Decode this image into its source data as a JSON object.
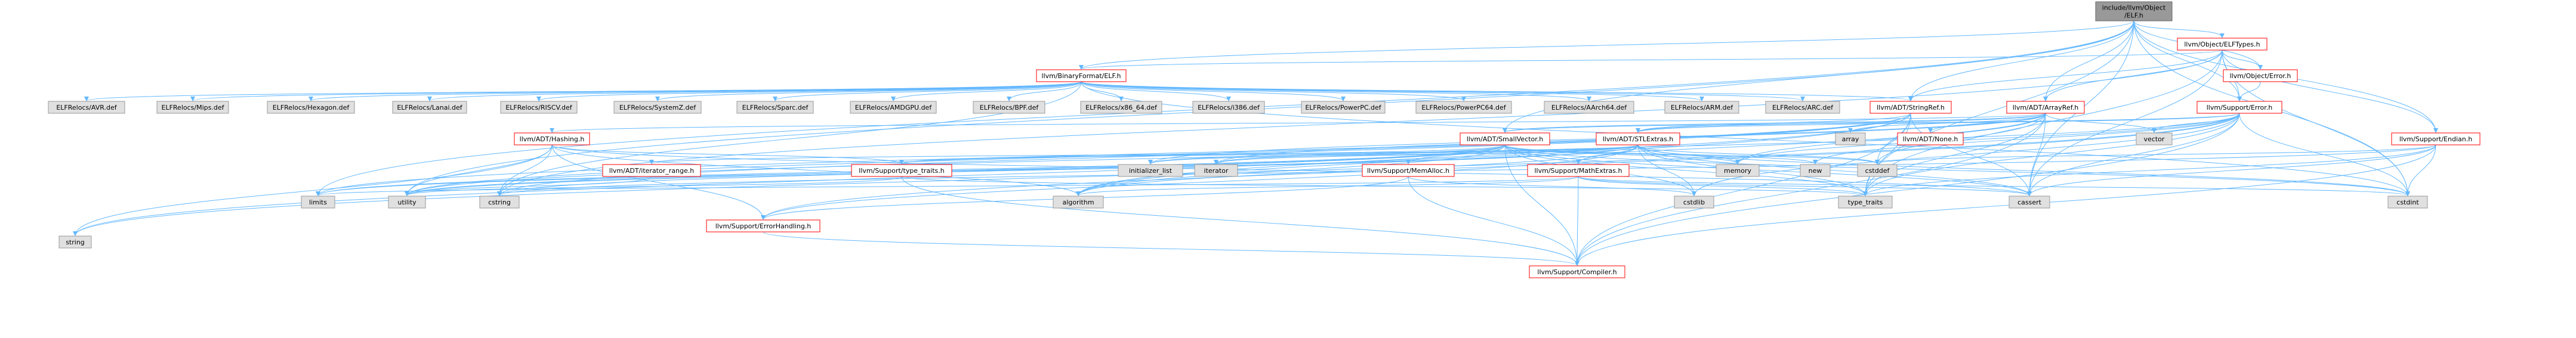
{
  "graph": {
    "type": "include-dependency-graph",
    "colors": {
      "edge": "#63b8ff",
      "root_fill": "#999999",
      "root_stroke": "#666666",
      "internal_fill": "#ffffff",
      "internal_stroke": "#ff0000",
      "external_fill": "#e0e0e0",
      "external_stroke": "#999999",
      "text": "#000000"
    },
    "nodes": [
      {
        "id": "root",
        "kind": "root",
        "lines": [
          "include/llvm/Object",
          "/ELF.h"
        ]
      },
      {
        "id": "objelftypes",
        "kind": "internal",
        "lines": [
          "llvm/Object/ELFTypes.h"
        ]
      },
      {
        "id": "binelf",
        "kind": "internal",
        "lines": [
          "llvm/BinaryFormat/ELF.h"
        ]
      },
      {
        "id": "objerror",
        "kind": "internal",
        "lines": [
          "llvm/Object/Error.h"
        ]
      },
      {
        "id": "r_avr",
        "kind": "external",
        "lines": [
          "ELFRelocs/AVR.def"
        ]
      },
      {
        "id": "r_mips",
        "kind": "external",
        "lines": [
          "ELFRelocs/Mips.def"
        ]
      },
      {
        "id": "r_hexagon",
        "kind": "external",
        "lines": [
          "ELFRelocs/Hexagon.def"
        ]
      },
      {
        "id": "r_lanai",
        "kind": "external",
        "lines": [
          "ELFRelocs/Lanai.def"
        ]
      },
      {
        "id": "r_riscv",
        "kind": "external",
        "lines": [
          "ELFRelocs/RISCV.def"
        ]
      },
      {
        "id": "r_systemz",
        "kind": "external",
        "lines": [
          "ELFRelocs/SystemZ.def"
        ]
      },
      {
        "id": "r_sparc",
        "kind": "external",
        "lines": [
          "ELFRelocs/Sparc.def"
        ]
      },
      {
        "id": "r_amdgpu",
        "kind": "external",
        "lines": [
          "ELFRelocs/AMDGPU.def"
        ]
      },
      {
        "id": "r_bpf",
        "kind": "external",
        "lines": [
          "ELFRelocs/BPF.def"
        ]
      },
      {
        "id": "r_x86_64",
        "kind": "external",
        "lines": [
          "ELFRelocs/x86_64.def"
        ]
      },
      {
        "id": "r_i386",
        "kind": "external",
        "lines": [
          "ELFRelocs/i386.def"
        ]
      },
      {
        "id": "r_ppc",
        "kind": "external",
        "lines": [
          "ELFRelocs/PowerPC.def"
        ]
      },
      {
        "id": "r_ppc64",
        "kind": "external",
        "lines": [
          "ELFRelocs/PowerPC64.def"
        ]
      },
      {
        "id": "r_aarch64",
        "kind": "external",
        "lines": [
          "ELFRelocs/AArch64.def"
        ]
      },
      {
        "id": "r_arm",
        "kind": "external",
        "lines": [
          "ELFRelocs/ARM.def"
        ]
      },
      {
        "id": "r_arc",
        "kind": "external",
        "lines": [
          "ELFRelocs/ARC.def"
        ]
      },
      {
        "id": "stringref",
        "kind": "internal",
        "lines": [
          "llvm/ADT/StringRef.h"
        ]
      },
      {
        "id": "arrayref",
        "kind": "internal",
        "lines": [
          "llvm/ADT/ArrayRef.h"
        ]
      },
      {
        "id": "supperror",
        "kind": "internal",
        "lines": [
          "llvm/Support/Error.h"
        ]
      },
      {
        "id": "hashing",
        "kind": "internal",
        "lines": [
          "llvm/ADT/Hashing.h"
        ]
      },
      {
        "id": "smallvector",
        "kind": "internal",
        "lines": [
          "llvm/ADT/SmallVector.h"
        ]
      },
      {
        "id": "stlextras",
        "kind": "internal",
        "lines": [
          "llvm/ADT/STLExtras.h"
        ]
      },
      {
        "id": "array",
        "kind": "external",
        "lines": [
          "array"
        ]
      },
      {
        "id": "none",
        "kind": "internal",
        "lines": [
          "llvm/ADT/None.h"
        ]
      },
      {
        "id": "vector",
        "kind": "external",
        "lines": [
          "vector"
        ]
      },
      {
        "id": "endian",
        "kind": "internal",
        "lines": [
          "llvm/Support/Endian.h"
        ]
      },
      {
        "id": "iterrange",
        "kind": "internal",
        "lines": [
          "llvm/ADT/iterator_range.h"
        ]
      },
      {
        "id": "typetraits",
        "kind": "internal",
        "lines": [
          "llvm/Support/type_traits.h"
        ]
      },
      {
        "id": "initlist",
        "kind": "external",
        "lines": [
          "initializer_list"
        ]
      },
      {
        "id": "iterator",
        "kind": "external",
        "lines": [
          "iterator"
        ]
      },
      {
        "id": "memalloc",
        "kind": "internal",
        "lines": [
          "llvm/Support/MemAlloc.h"
        ]
      },
      {
        "id": "mathextras",
        "kind": "internal",
        "lines": [
          "llvm/Support/MathExtras.h"
        ]
      },
      {
        "id": "memory",
        "kind": "external",
        "lines": [
          "memory"
        ]
      },
      {
        "id": "new",
        "kind": "external",
        "lines": [
          "new"
        ]
      },
      {
        "id": "cstddef",
        "kind": "external",
        "lines": [
          "cstddef"
        ]
      },
      {
        "id": "limits",
        "kind": "external",
        "lines": [
          "limits"
        ]
      },
      {
        "id": "utility",
        "kind": "external",
        "lines": [
          "utility"
        ]
      },
      {
        "id": "cstring",
        "kind": "external",
        "lines": [
          "cstring"
        ]
      },
      {
        "id": "algorithm",
        "kind": "external",
        "lines": [
          "algorithm"
        ]
      },
      {
        "id": "errhandling",
        "kind": "internal",
        "lines": [
          "llvm/Support/ErrorHandling.h"
        ]
      },
      {
        "id": "cstdlib",
        "kind": "external",
        "lines": [
          "cstdlib"
        ]
      },
      {
        "id": "typetraits_std",
        "kind": "external",
        "lines": [
          "type_traits"
        ]
      },
      {
        "id": "cassert",
        "kind": "external",
        "lines": [
          "cassert"
        ]
      },
      {
        "id": "cstdint",
        "kind": "external",
        "lines": [
          "cstdint"
        ]
      },
      {
        "id": "string",
        "kind": "external",
        "lines": [
          "string"
        ]
      },
      {
        "id": "compiler",
        "kind": "internal",
        "lines": [
          "llvm/Support/Compiler.h"
        ]
      }
    ],
    "edges": [
      [
        "root",
        "objelftypes"
      ],
      [
        "root",
        "binelf"
      ],
      [
        "root",
        "objerror"
      ],
      [
        "root",
        "stringref"
      ],
      [
        "root",
        "arrayref"
      ],
      [
        "root",
        "supperror"
      ],
      [
        "root",
        "smallvector"
      ],
      [
        "root",
        "endian"
      ],
      [
        "root",
        "limits"
      ],
      [
        "root",
        "utility"
      ],
      [
        "root",
        "cstdint"
      ],
      [
        "root",
        "cassert"
      ],
      [
        "root",
        "typetraits_std"
      ],
      [
        "objelftypes",
        "binelf"
      ],
      [
        "objelftypes",
        "objerror"
      ],
      [
        "objelftypes",
        "stringref"
      ],
      [
        "objelftypes",
        "arrayref"
      ],
      [
        "objelftypes",
        "supperror"
      ],
      [
        "objelftypes",
        "endian"
      ],
      [
        "objelftypes",
        "cassert"
      ],
      [
        "objelftypes",
        "cstdint"
      ],
      [
        "objelftypes",
        "cstring"
      ],
      [
        "objelftypes",
        "typetraits_std"
      ],
      [
        "binelf",
        "r_avr"
      ],
      [
        "binelf",
        "r_mips"
      ],
      [
        "binelf",
        "r_hexagon"
      ],
      [
        "binelf",
        "r_lanai"
      ],
      [
        "binelf",
        "r_riscv"
      ],
      [
        "binelf",
        "r_systemz"
      ],
      [
        "binelf",
        "r_sparc"
      ],
      [
        "binelf",
        "r_amdgpu"
      ],
      [
        "binelf",
        "r_bpf"
      ],
      [
        "binelf",
        "r_x86_64"
      ],
      [
        "binelf",
        "r_i386"
      ],
      [
        "binelf",
        "r_ppc"
      ],
      [
        "binelf",
        "r_ppc64"
      ],
      [
        "binelf",
        "r_aarch64"
      ],
      [
        "binelf",
        "r_arm"
      ],
      [
        "binelf",
        "r_arc"
      ],
      [
        "binelf",
        "stringref"
      ],
      [
        "binelf",
        "cstdint"
      ],
      [
        "binelf",
        "cstring"
      ],
      [
        "objerror",
        "supperror"
      ],
      [
        "stringref",
        "stlextras"
      ],
      [
        "stringref",
        "compiler"
      ],
      [
        "stringref",
        "algorithm"
      ],
      [
        "stringref",
        "cassert"
      ],
      [
        "stringref",
        "cstddef"
      ],
      [
        "stringref",
        "cstring"
      ],
      [
        "stringref",
        "limits"
      ],
      [
        "stringref",
        "string"
      ],
      [
        "stringref",
        "typetraits_std"
      ],
      [
        "stringref",
        "utility"
      ],
      [
        "arrayref",
        "hashing"
      ],
      [
        "arrayref",
        "none"
      ],
      [
        "arrayref",
        "smallvector"
      ],
      [
        "arrayref",
        "stlextras"
      ],
      [
        "arrayref",
        "compiler"
      ],
      [
        "arrayref",
        "algorithm"
      ],
      [
        "arrayref",
        "array"
      ],
      [
        "arrayref",
        "cassert"
      ],
      [
        "arrayref",
        "cstddef"
      ],
      [
        "arrayref",
        "initlist"
      ],
      [
        "arrayref",
        "iterator"
      ],
      [
        "arrayref",
        "memory"
      ],
      [
        "arrayref",
        "typetraits_std"
      ],
      [
        "arrayref",
        "vector"
      ],
      [
        "supperror",
        "stlextras"
      ],
      [
        "supperror",
        "smallvector"
      ],
      [
        "supperror",
        "errhandling"
      ],
      [
        "supperror",
        "compiler"
      ],
      [
        "supperror",
        "cassert"
      ],
      [
        "supperror",
        "cstdint"
      ],
      [
        "supperror",
        "cstdlib"
      ],
      [
        "supperror",
        "memory"
      ],
      [
        "supperror",
        "new"
      ],
      [
        "supperror",
        "string"
      ],
      [
        "supperror",
        "typetraits_std"
      ],
      [
        "supperror",
        "utility"
      ],
      [
        "supperror",
        "vector"
      ],
      [
        "hashing",
        "errhandling"
      ],
      [
        "hashing",
        "typetraits"
      ],
      [
        "hashing",
        "algorithm"
      ],
      [
        "hashing",
        "cassert"
      ],
      [
        "hashing",
        "cstring"
      ],
      [
        "hashing",
        "string"
      ],
      [
        "hashing",
        "utility"
      ],
      [
        "smallvector",
        "compiler"
      ],
      [
        "smallvector",
        "memalloc"
      ],
      [
        "smallvector",
        "typetraits"
      ],
      [
        "smallvector",
        "algorithm"
      ],
      [
        "smallvector",
        "cassert"
      ],
      [
        "smallvector",
        "cstddef"
      ],
      [
        "smallvector",
        "cstdlib"
      ],
      [
        "smallvector",
        "cstring"
      ],
      [
        "smallvector",
        "initlist"
      ],
      [
        "smallvector",
        "iterator"
      ],
      [
        "smallvector",
        "limits"
      ],
      [
        "smallvector",
        "memory"
      ],
      [
        "smallvector",
        "new"
      ],
      [
        "smallvector",
        "typetraits_std"
      ],
      [
        "smallvector",
        "utility"
      ],
      [
        "smallvector",
        "cstdint"
      ],
      [
        "stlextras",
        "iterrange"
      ],
      [
        "stlextras",
        "mathextras"
      ],
      [
        "stlextras",
        "errhandling"
      ],
      [
        "stlextras",
        "typetraits"
      ],
      [
        "stlextras",
        "algorithm"
      ],
      [
        "stlextras",
        "cassert"
      ],
      [
        "stlextras",
        "cstddef"
      ],
      [
        "stlextras",
        "cstdint"
      ],
      [
        "stlextras",
        "cstdlib"
      ],
      [
        "stlextras",
        "initlist"
      ],
      [
        "stlextras",
        "iterator"
      ],
      [
        "stlextras",
        "limits"
      ],
      [
        "stlextras",
        "memory"
      ],
      [
        "stlextras",
        "typetraits_std"
      ],
      [
        "stlextras",
        "utility"
      ],
      [
        "endian",
        "compiler"
      ],
      [
        "endian",
        "cassert"
      ],
      [
        "endian",
        "cstddef"
      ],
      [
        "endian",
        "cstdint"
      ],
      [
        "endian",
        "cstring"
      ],
      [
        "endian",
        "typetraits_std"
      ],
      [
        "iterrange",
        "utility"
      ],
      [
        "typetraits",
        "compiler"
      ],
      [
        "typetraits",
        "typetraits_std"
      ],
      [
        "typetraits",
        "utility"
      ],
      [
        "memalloc",
        "compiler"
      ],
      [
        "memalloc",
        "errhandling"
      ],
      [
        "memalloc",
        "cstdlib"
      ],
      [
        "mathextras",
        "compiler"
      ],
      [
        "mathextras",
        "cassert"
      ],
      [
        "mathextras",
        "cstdint"
      ],
      [
        "mathextras",
        "algorithm"
      ],
      [
        "mathextras",
        "climits_skip"
      ],
      [
        "mathextras",
        "limits"
      ],
      [
        "mathextras",
        "typetraits_std"
      ],
      [
        "errhandling",
        "compiler"
      ]
    ]
  }
}
